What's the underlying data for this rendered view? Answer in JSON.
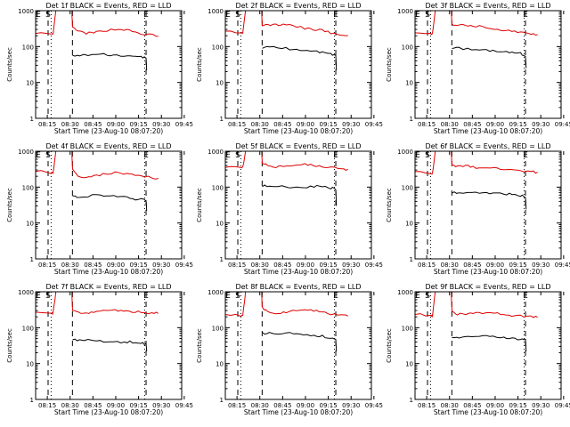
{
  "colors": {
    "events": "#000000",
    "lld": "#dd0000",
    "axes": "#000000"
  },
  "chart_data": [
    {
      "type": "line",
      "title": "Det 1f BLACK = Events, RED = LLD",
      "xlabel": "Start Time (23-Aug-10 08:07:20)",
      "ylabel": "Counts/sec",
      "yscale": "log",
      "ylim": [
        1,
        1000
      ],
      "x_ticks": [
        "08:15",
        "08:30",
        "08:45",
        "09:00",
        "09:15",
        "09:30",
        "09:45"
      ],
      "y_ticks": [
        "1",
        "10",
        "100",
        "1000"
      ],
      "markers": {
        "S": 8.2,
        "E": 72.6
      },
      "vlines_dashed": [
        8.2,
        24.2,
        72.6
      ],
      "vlines_dotted": [
        10.2,
        71.7
      ],
      "grid": false,
      "series": [
        {
          "x": [
            0,
            10.3,
            11.5,
            13.3,
            21.9,
            22.9,
            23.8,
            24.3,
            27.8,
            33.3,
            38.1,
            44.3,
            52.3,
            58.0,
            63.6,
            69.3,
            76.4,
            80.6
          ],
          "y": [
            250,
            210,
            220,
            1000,
            1000,
            1000,
            1000,
            340,
            265,
            235,
            240,
            280,
            300,
            300,
            265,
            225,
            210,
            195
          ]
        },
        {
          "x": [
            24.3,
            28.9,
            37.3,
            44.8,
            51.3,
            58.4,
            63.8,
            69.3,
            72.6,
            73.0
          ],
          "y": [
            55,
            55,
            60,
            60,
            58,
            55,
            52,
            52,
            48,
            22
          ]
        }
      ]
    },
    {
      "type": "line",
      "title": "Det 2f BLACK = Events, RED = LLD",
      "xlabel": "Start Time (23-Aug-10 08:07:20)",
      "ylabel": "Counts/sec",
      "yscale": "log",
      "ylim": [
        1,
        1000
      ],
      "x_ticks": [
        "08:15",
        "08:30",
        "08:45",
        "09:00",
        "09:15",
        "09:30",
        "09:45"
      ],
      "y_ticks": [
        "1",
        "10",
        "100",
        "1000"
      ],
      "markers": {
        "S": 8.2,
        "E": 72.6
      },
      "vlines_dashed": [
        8.2,
        24.2,
        72.6
      ],
      "vlines_dotted": [
        10.2,
        71.7
      ],
      "grid": false,
      "series": [
        {
          "x": [
            0,
            10.3,
            11.5,
            13.3,
            21.9,
            22.9,
            23.8,
            24.3,
            27.8,
            33.3,
            38.1,
            44.3,
            52.3,
            58.0,
            63.6,
            69.3,
            76.4,
            80.6
          ],
          "y": [
            290,
            240,
            250,
            1000,
            1000,
            1000,
            1000,
            400,
            395,
            405,
            400,
            395,
            320,
            300,
            285,
            240,
            220,
            205
          ]
        },
        {
          "x": [
            24.3,
            28.9,
            37.3,
            44.8,
            51.3,
            58.4,
            63.8,
            69.3,
            72.6,
            73.0
          ],
          "y": [
            95,
            95,
            90,
            85,
            80,
            75,
            70,
            62,
            58,
            22
          ]
        }
      ]
    },
    {
      "type": "line",
      "title": "Det 3f BLACK = Events, RED = LLD",
      "xlabel": "Start Time (23-Aug-10 08:07:20)",
      "ylabel": "Counts/sec",
      "yscale": "log",
      "ylim": [
        1,
        1000
      ],
      "x_ticks": [
        "08:15",
        "08:30",
        "08:45",
        "09:00",
        "09:15",
        "09:30",
        "09:45"
      ],
      "y_ticks": [
        "1",
        "10",
        "100",
        "1000"
      ],
      "markers": {
        "S": 8.2,
        "E": 72.6
      },
      "vlines_dashed": [
        8.2,
        24.2,
        72.6
      ],
      "vlines_dotted": [
        10.2,
        71.7
      ],
      "grid": false,
      "series": [
        {
          "x": [
            0,
            10.3,
            11.5,
            13.3,
            21.9,
            22.9,
            23.8,
            24.3,
            27.8,
            33.3,
            38.1,
            44.3,
            52.3,
            58.0,
            63.6,
            69.3,
            76.4,
            80.6
          ],
          "y": [
            260,
            220,
            230,
            1000,
            1000,
            1000,
            1000,
            420,
            410,
            380,
            370,
            360,
            320,
            290,
            270,
            240,
            230,
            215
          ]
        },
        {
          "x": [
            24.3,
            28.9,
            37.3,
            44.8,
            51.3,
            58.4,
            63.8,
            69.3,
            72.6,
            73.0
          ],
          "y": [
            90,
            90,
            85,
            80,
            75,
            70,
            70,
            65,
            55,
            25
          ]
        }
      ]
    },
    {
      "type": "line",
      "title": "Det 4f BLACK = Events, RED = LLD",
      "xlabel": "Start Time (23-Aug-10 08:07:20)",
      "ylabel": "Counts/sec",
      "yscale": "log",
      "ylim": [
        1,
        1000
      ],
      "x_ticks": [
        "08:15",
        "08:30",
        "08:45",
        "09:00",
        "09:15",
        "09:30",
        "09:45"
      ],
      "y_ticks": [
        "1",
        "10",
        "100",
        "1000"
      ],
      "markers": {
        "S": 8.2,
        "E": 72.6
      },
      "vlines_dashed": [
        8.2,
        24.2,
        72.6
      ],
      "vlines_dotted": [
        10.2,
        71.7
      ],
      "grid": false,
      "series": [
        {
          "x": [
            0,
            10.3,
            11.5,
            13.3,
            21.9,
            22.9,
            23.8,
            24.3,
            27.8,
            33.3,
            38.1,
            44.3,
            52.3,
            58.0,
            63.6,
            69.3,
            76.4,
            80.6
          ],
          "y": [
            290,
            240,
            250,
            1000,
            1000,
            1000,
            1000,
            300,
            210,
            190,
            200,
            230,
            250,
            240,
            220,
            200,
            185,
            175
          ]
        },
        {
          "x": [
            24.3,
            28.9,
            37.3,
            44.8,
            51.3,
            58.4,
            63.8,
            69.3,
            72.6,
            73.0
          ],
          "y": [
            55,
            55,
            58,
            60,
            58,
            52,
            48,
            45,
            42,
            22
          ]
        }
      ]
    },
    {
      "type": "line",
      "title": "Det 5f BLACK = Events, RED = LLD",
      "xlabel": "Start Time (23-Aug-10 08:07:20)",
      "ylabel": "Counts/sec",
      "yscale": "log",
      "ylim": [
        1,
        1000
      ],
      "x_ticks": [
        "08:15",
        "08:30",
        "08:45",
        "09:00",
        "09:15",
        "09:30",
        "09:45"
      ],
      "y_ticks": [
        "1",
        "10",
        "100",
        "1000"
      ],
      "markers": {
        "S": 8.2,
        "E": 72.6
      },
      "vlines_dashed": [
        8.2,
        24.2,
        72.6
      ],
      "vlines_dotted": [
        10.2,
        71.7
      ],
      "grid": false,
      "series": [
        {
          "x": [
            0,
            10.3,
            11.5,
            13.3,
            21.9,
            22.9,
            23.8,
            24.3,
            27.8,
            33.3,
            38.1,
            44.3,
            52.3,
            58.0,
            63.6,
            69.3,
            76.4,
            80.6
          ],
          "y": [
            380,
            330,
            350,
            1000,
            1000,
            1000,
            1000,
            480,
            400,
            370,
            380,
            420,
            430,
            410,
            380,
            360,
            330,
            310
          ]
        },
        {
          "x": [
            24.3,
            28.9,
            37.3,
            44.8,
            51.3,
            58.4,
            63.8,
            69.3,
            72.6,
            73.0
          ],
          "y": [
            110,
            110,
            105,
            100,
            100,
            105,
            105,
            95,
            90,
            30
          ]
        }
      ]
    },
    {
      "type": "line",
      "title": "Det 6f BLACK = Events, RED = LLD",
      "xlabel": "Start Time (23-Aug-10 08:07:20)",
      "ylabel": "Counts/sec",
      "yscale": "log",
      "ylim": [
        1,
        1000
      ],
      "x_ticks": [
        "08:15",
        "08:30",
        "08:45",
        "09:00",
        "09:15",
        "09:30",
        "09:45"
      ],
      "y_ticks": [
        "1",
        "10",
        "100",
        "1000"
      ],
      "markers": {
        "S": 8.2,
        "E": 72.6
      },
      "vlines_dashed": [
        8.2,
        24.2,
        72.6
      ],
      "vlines_dotted": [
        10.2,
        71.7
      ],
      "grid": false,
      "series": [
        {
          "x": [
            0,
            10.3,
            11.5,
            13.3,
            21.9,
            22.9,
            23.8,
            24.3,
            27.8,
            33.3,
            38.1,
            44.3,
            52.3,
            58.0,
            63.6,
            69.3,
            76.4,
            80.6
          ],
          "y": [
            290,
            240,
            250,
            1000,
            1000,
            1000,
            1000,
            400,
            380,
            390,
            360,
            350,
            340,
            320,
            300,
            290,
            270,
            260
          ]
        },
        {
          "x": [
            24.3,
            28.9,
            37.3,
            44.8,
            51.3,
            58.4,
            63.8,
            69.3,
            72.6,
            73.0
          ],
          "y": [
            70,
            70,
            70,
            68,
            65,
            65,
            65,
            58,
            55,
            24
          ]
        }
      ]
    },
    {
      "type": "line",
      "title": "Det 7f BLACK = Events, RED = LLD",
      "xlabel": "Start Time (23-Aug-10 08:07:20)",
      "ylabel": "Counts/sec",
      "yscale": "log",
      "ylim": [
        1,
        1000
      ],
      "x_ticks": [
        "08:15",
        "08:30",
        "08:45",
        "09:00",
        "09:15",
        "09:30",
        "09:45"
      ],
      "y_ticks": [
        "1",
        "10",
        "100",
        "1000"
      ],
      "markers": {
        "S": 8.2,
        "E": 72.6
      },
      "vlines_dashed": [
        8.2,
        24.2,
        72.6
      ],
      "vlines_dotted": [
        10.2,
        71.7
      ],
      "grid": false,
      "series": [
        {
          "x": [
            0,
            10.3,
            11.5,
            13.3,
            21.9,
            22.9,
            23.8,
            24.3,
            27.8,
            33.3,
            38.1,
            44.3,
            52.3,
            58.0,
            63.6,
            69.3,
            76.4,
            80.6
          ],
          "y": [
            290,
            240,
            250,
            1000,
            1000,
            1000,
            1000,
            320,
            265,
            255,
            270,
            300,
            310,
            300,
            280,
            270,
            255,
            250
          ]
        },
        {
          "x": [
            24.3,
            28.9,
            37.3,
            44.8,
            51.3,
            58.4,
            63.8,
            69.3,
            72.6,
            73.0
          ],
          "y": [
            45,
            45,
            45,
            42,
            40,
            40,
            40,
            38,
            35,
            22
          ]
        }
      ]
    },
    {
      "type": "line",
      "title": "Det 8f BLACK = Events, RED = LLD",
      "xlabel": "Start Time (23-Aug-10 08:07:20)",
      "ylabel": "Counts/sec",
      "yscale": "log",
      "ylim": [
        1,
        1000
      ],
      "x_ticks": [
        "08:15",
        "08:30",
        "08:45",
        "09:00",
        "09:15",
        "09:30",
        "09:45"
      ],
      "y_ticks": [
        "1",
        "10",
        "100",
        "1000"
      ],
      "markers": {
        "S": 8.2,
        "E": 72.6
      },
      "vlines_dashed": [
        8.2,
        24.2,
        72.6
      ],
      "vlines_dotted": [
        10.2,
        71.7
      ],
      "grid": false,
      "series": [
        {
          "x": [
            0,
            10.3,
            11.5,
            13.3,
            21.9,
            22.9,
            23.8,
            24.3,
            27.8,
            33.3,
            38.1,
            44.3,
            52.3,
            58.0,
            63.6,
            69.3,
            76.4,
            80.6
          ],
          "y": [
            250,
            210,
            220,
            1000,
            1000,
            1000,
            1000,
            380,
            265,
            250,
            260,
            290,
            310,
            300,
            270,
            240,
            220,
            210
          ]
        },
        {
          "x": [
            24.3,
            28.9,
            37.3,
            44.8,
            51.3,
            58.4,
            63.8,
            69.3,
            72.6,
            73.0
          ],
          "y": [
            70,
            70,
            70,
            68,
            65,
            60,
            58,
            52,
            45,
            22
          ]
        }
      ]
    },
    {
      "type": "line",
      "title": "Det 9f BLACK = Events, RED = LLD",
      "xlabel": "Start Time (23-Aug-10 08:07:20)",
      "ylabel": "Counts/sec",
      "yscale": "log",
      "ylim": [
        1,
        1000
      ],
      "x_ticks": [
        "08:15",
        "08:30",
        "08:45",
        "09:00",
        "09:15",
        "09:30",
        "09:45"
      ],
      "y_ticks": [
        "1",
        "10",
        "100",
        "1000"
      ],
      "markers": {
        "S": 8.2,
        "E": 72.6
      },
      "vlines_dashed": [
        8.2,
        24.2,
        72.6
      ],
      "vlines_dotted": [
        10.2,
        71.7
      ],
      "grid": false,
      "series": [
        {
          "x": [
            0,
            10.3,
            11.5,
            13.3,
            21.9,
            22.9,
            23.8,
            24.3,
            27.8,
            33.3,
            38.1,
            44.3,
            52.3,
            58.0,
            63.6,
            69.3,
            76.4,
            80.6
          ],
          "y": [
            250,
            210,
            220,
            1000,
            1000,
            1000,
            1000,
            280,
            235,
            245,
            250,
            260,
            250,
            240,
            220,
            210,
            200,
            195
          ]
        },
        {
          "x": [
            24.3,
            28.9,
            37.3,
            44.8,
            51.3,
            58.4,
            63.8,
            69.3,
            72.6,
            73.0
          ],
          "y": [
            55,
            55,
            60,
            58,
            55,
            52,
            50,
            48,
            46,
            22
          ]
        }
      ]
    }
  ]
}
